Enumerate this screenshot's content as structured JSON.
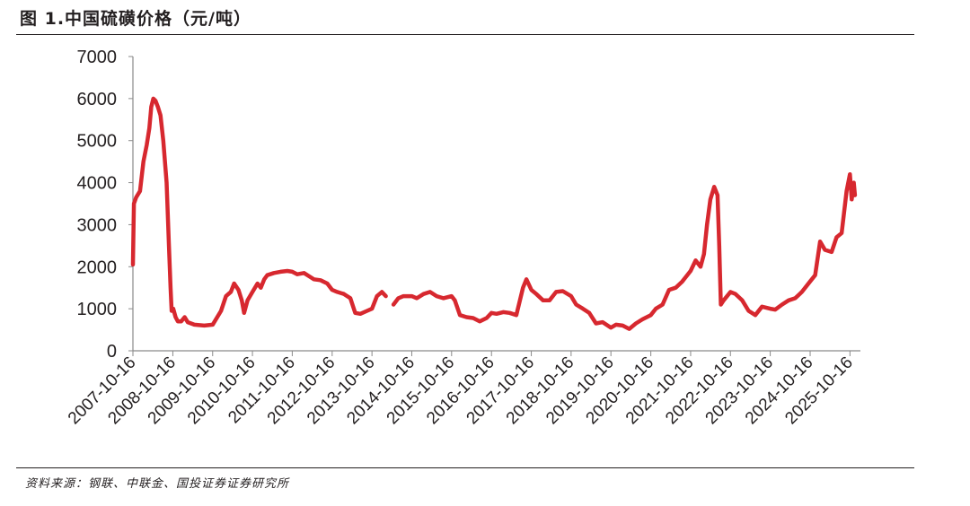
{
  "header": {
    "title": "图 1.中国硫磺价格（元/吨）"
  },
  "footer": {
    "source": "资料来源：钢联、中联金、国投证券证券研究所"
  },
  "chart_data": {
    "type": "line",
    "title": "图 1.中国硫磺价格（元/吨）",
    "xlabel": "",
    "ylabel": "",
    "ylim": [
      0,
      7000
    ],
    "yticks": [
      0,
      1000,
      2000,
      3000,
      4000,
      5000,
      6000,
      7000
    ],
    "xlim": [
      "2007-10-16",
      "2026-01-20"
    ],
    "xticks": [
      "2007-10-16",
      "2008-10-16",
      "2009-10-16",
      "2010-10-16",
      "2011-10-16",
      "2012-10-16",
      "2013-10-16",
      "2014-10-16",
      "2015-10-16",
      "2016-10-16",
      "2017-10-16",
      "2018-10-16",
      "2019-10-16",
      "2020-10-16",
      "2021-10-16",
      "2022-10-16",
      "2023-10-16",
      "2024-10-16",
      "2025-10-16"
    ],
    "grid": false,
    "legend": "none",
    "series_color": "#d7282f",
    "series": [
      {
        "name": "",
        "points": [
          [
            "2007-10-16",
            2050
          ],
          [
            "2007-10-25",
            3500
          ],
          [
            "2007-11-15",
            3650
          ],
          [
            "2007-12-20",
            3800
          ],
          [
            "2008-01-20",
            4500
          ],
          [
            "2008-02-20",
            4900
          ],
          [
            "2008-03-15",
            5300
          ],
          [
            "2008-04-01",
            5800
          ],
          [
            "2008-04-20",
            6000
          ],
          [
            "2008-05-10",
            5950
          ],
          [
            "2008-06-01",
            5800
          ],
          [
            "2008-06-25",
            5600
          ],
          [
            "2008-07-20",
            5000
          ],
          [
            "2008-08-20",
            4000
          ],
          [
            "2008-09-10",
            2500
          ],
          [
            "2008-09-25",
            1500
          ],
          [
            "2008-10-05",
            950
          ],
          [
            "2008-10-20",
            1000
          ],
          [
            "2008-11-10",
            800
          ],
          [
            "2008-12-01",
            700
          ],
          [
            "2009-01-01",
            700
          ],
          [
            "2009-02-01",
            800
          ],
          [
            "2009-03-01",
            680
          ],
          [
            "2009-05-01",
            620
          ],
          [
            "2009-08-01",
            600
          ],
          [
            "2009-10-16",
            620
          ],
          [
            "2010-01-01",
            950
          ],
          [
            "2010-02-15",
            1300
          ],
          [
            "2010-04-01",
            1400
          ],
          [
            "2010-05-01",
            1600
          ],
          [
            "2010-06-10",
            1450
          ],
          [
            "2010-07-10",
            1200
          ],
          [
            "2010-08-01",
            900
          ],
          [
            "2010-09-01",
            1200
          ],
          [
            "2010-10-16",
            1400
          ],
          [
            "2010-12-01",
            1600
          ],
          [
            "2011-01-01",
            1500
          ],
          [
            "2011-02-01",
            1700
          ],
          [
            "2011-03-01",
            1800
          ],
          [
            "2011-05-01",
            1850
          ],
          [
            "2011-07-01",
            1880
          ],
          [
            "2011-09-01",
            1900
          ],
          [
            "2011-10-16",
            1880
          ],
          [
            "2011-12-01",
            1820
          ],
          [
            "2012-02-01",
            1850
          ],
          [
            "2012-03-15",
            1780
          ],
          [
            "2012-05-01",
            1700
          ],
          [
            "2012-07-01",
            1680
          ],
          [
            "2012-09-01",
            1600
          ],
          [
            "2012-10-16",
            1450
          ],
          [
            "2012-12-01",
            1400
          ],
          [
            "2013-02-01",
            1350
          ],
          [
            "2013-04-01",
            1250
          ],
          [
            "2013-05-15",
            900
          ],
          [
            "2013-07-01",
            880
          ],
          [
            "2013-09-01",
            950
          ],
          [
            "2013-10-16",
            1000
          ],
          [
            "2013-12-01",
            1300
          ],
          [
            "2014-01-15",
            1400
          ],
          [
            "2014-02-20",
            1300
          ],
          [
            "2014-04-01",
            null
          ],
          [
            "2014-05-01",
            1100
          ],
          [
            "2014-06-15",
            1250
          ],
          [
            "2014-08-01",
            1300
          ],
          [
            "2014-10-16",
            1300
          ],
          [
            "2014-12-01",
            1250
          ],
          [
            "2015-02-01",
            1350
          ],
          [
            "2015-04-01",
            1400
          ],
          [
            "2015-06-01",
            1300
          ],
          [
            "2015-08-01",
            1250
          ],
          [
            "2015-10-16",
            1300
          ],
          [
            "2015-11-15",
            1200
          ],
          [
            "2016-01-01",
            850
          ],
          [
            "2016-03-01",
            800
          ],
          [
            "2016-05-01",
            780
          ],
          [
            "2016-07-01",
            700
          ],
          [
            "2016-09-01",
            780
          ],
          [
            "2016-10-16",
            900
          ],
          [
            "2016-12-01",
            880
          ],
          [
            "2017-02-01",
            920
          ],
          [
            "2017-04-01",
            900
          ],
          [
            "2017-06-01",
            850
          ],
          [
            "2017-08-01",
            1500
          ],
          [
            "2017-09-01",
            1700
          ],
          [
            "2017-10-16",
            1450
          ],
          [
            "2017-12-01",
            1350
          ],
          [
            "2018-02-01",
            1200
          ],
          [
            "2018-04-01",
            1200
          ],
          [
            "2018-06-01",
            1400
          ],
          [
            "2018-08-01",
            1420
          ],
          [
            "2018-10-16",
            1300
          ],
          [
            "2018-12-01",
            1100
          ],
          [
            "2019-02-01",
            1000
          ],
          [
            "2019-04-01",
            900
          ],
          [
            "2019-06-01",
            650
          ],
          [
            "2019-08-01",
            680
          ],
          [
            "2019-10-16",
            550
          ],
          [
            "2019-12-01",
            620
          ],
          [
            "2020-02-01",
            600
          ],
          [
            "2020-04-01",
            520
          ],
          [
            "2020-06-01",
            650
          ],
          [
            "2020-08-01",
            750
          ],
          [
            "2020-10-16",
            850
          ],
          [
            "2020-12-01",
            1000
          ],
          [
            "2021-02-01",
            1100
          ],
          [
            "2021-04-01",
            1450
          ],
          [
            "2021-06-01",
            1500
          ],
          [
            "2021-08-01",
            1650
          ],
          [
            "2021-10-16",
            1900
          ],
          [
            "2021-12-01",
            2150
          ],
          [
            "2022-01-15",
            2000
          ],
          [
            "2022-02-15",
            2300
          ],
          [
            "2022-03-15",
            3000
          ],
          [
            "2022-04-15",
            3600
          ],
          [
            "2022-05-20",
            3900
          ],
          [
            "2022-06-20",
            3700
          ],
          [
            "2022-07-05",
            2500
          ],
          [
            "2022-07-20",
            1100
          ],
          [
            "2022-08-15",
            1200
          ],
          [
            "2022-10-16",
            1400
          ],
          [
            "2022-12-01",
            1350
          ],
          [
            "2023-02-01",
            1200
          ],
          [
            "2023-04-01",
            950
          ],
          [
            "2023-06-01",
            850
          ],
          [
            "2023-08-01",
            1050
          ],
          [
            "2023-10-16",
            1000
          ],
          [
            "2023-12-01",
            980
          ],
          [
            "2024-02-01",
            1100
          ],
          [
            "2024-04-01",
            1200
          ],
          [
            "2024-06-01",
            1250
          ],
          [
            "2024-08-01",
            1400
          ],
          [
            "2024-10-16",
            1650
          ],
          [
            "2024-12-01",
            1800
          ],
          [
            "2025-01-15",
            2600
          ],
          [
            "2025-03-01",
            2400
          ],
          [
            "2025-05-01",
            2350
          ],
          [
            "2025-06-15",
            2700
          ],
          [
            "2025-08-01",
            2800
          ],
          [
            "2025-09-15",
            3800
          ],
          [
            "2025-10-16",
            4200
          ],
          [
            "2025-11-01",
            3600
          ],
          [
            "2025-11-20",
            4000
          ],
          [
            "2025-12-01",
            3700
          ]
        ]
      }
    ]
  }
}
